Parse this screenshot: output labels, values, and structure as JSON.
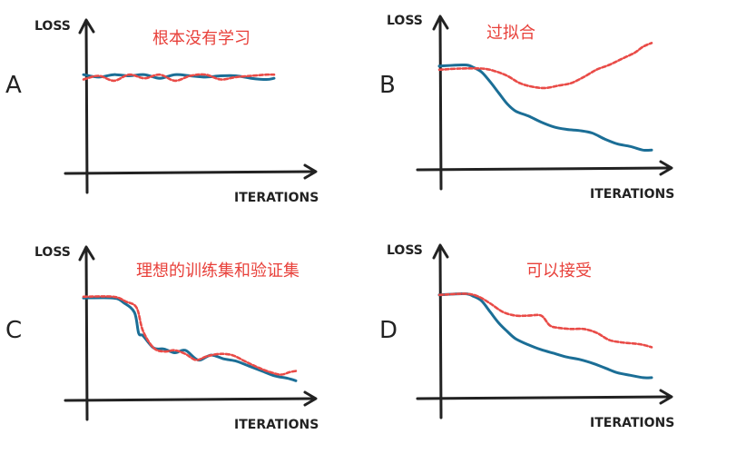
{
  "colors": {
    "training": "#1b6e96",
    "validation": "#e94b47",
    "axis": "#222222",
    "title": "#e8403a"
  },
  "chart_data": [
    {
      "type": "line",
      "panel": "A",
      "title": "根本没有学习",
      "xlabel": "ITERATIONS",
      "ylabel": "LOSS",
      "xlim": [
        0,
        10
      ],
      "ylim": [
        0,
        10
      ],
      "grid": false,
      "series": [
        {
          "style": "solid",
          "color": "#1b6e96",
          "x": [
            0,
            0.8,
            1.6,
            2.4,
            3.2,
            4.0,
            4.8,
            5.6,
            6.4,
            7.2,
            8.0,
            8.8,
            9.6,
            10
          ],
          "y": [
            7.3,
            7.1,
            7.3,
            7.2,
            7.3,
            7.0,
            7.3,
            7.2,
            7.1,
            7.2,
            7.2,
            7.0,
            6.9,
            7.0
          ]
        },
        {
          "style": "dashed",
          "color": "#e94b47",
          "x": [
            0,
            0.8,
            1.6,
            2.4,
            3.2,
            4.0,
            4.8,
            5.6,
            6.4,
            7.2,
            8.0,
            8.8,
            9.6,
            10
          ],
          "y": [
            6.9,
            7.2,
            6.8,
            7.3,
            7.0,
            7.3,
            6.8,
            7.2,
            7.3,
            6.9,
            7.1,
            7.2,
            7.3,
            7.3
          ]
        }
      ]
    },
    {
      "type": "line",
      "panel": "B",
      "title": "过拟合",
      "xlabel": "ITERATIONS",
      "ylabel": "LOSS",
      "xlim": [
        0,
        10
      ],
      "ylim": [
        0,
        10
      ],
      "grid": false,
      "series": [
        {
          "style": "solid",
          "color": "#1b6e96",
          "x": [
            0,
            1.2,
            1.6,
            2.0,
            2.4,
            2.8,
            3.2,
            3.6,
            4.2,
            4.8,
            5.4,
            6.0,
            6.6,
            7.2,
            7.8,
            8.4,
            9.0,
            9.6,
            10
          ],
          "y": [
            7.7,
            7.8,
            7.6,
            7.2,
            6.4,
            5.5,
            4.6,
            4.0,
            3.6,
            3.1,
            2.7,
            2.5,
            2.4,
            2.2,
            1.7,
            1.3,
            1.1,
            0.8,
            0.8
          ]
        },
        {
          "style": "dashed",
          "color": "#e94b47",
          "x": [
            0,
            1.0,
            2.0,
            2.6,
            3.2,
            3.8,
            4.4,
            5.0,
            5.6,
            6.2,
            6.8,
            7.4,
            8.0,
            8.6,
            9.2,
            9.6,
            10
          ],
          "y": [
            7.4,
            7.5,
            7.5,
            7.3,
            6.9,
            6.3,
            6.0,
            5.9,
            6.1,
            6.3,
            6.8,
            7.4,
            7.8,
            8.3,
            8.8,
            9.3,
            9.6
          ]
        }
      ]
    },
    {
      "type": "line",
      "panel": "C",
      "title": "理想的训练集和验证集",
      "xlabel": "ITERATIONS",
      "ylabel": "LOSS",
      "xlim": [
        0,
        10
      ],
      "ylim": [
        0,
        10
      ],
      "grid": false,
      "series": [
        {
          "style": "solid",
          "color": "#1b6e96",
          "x": [
            0,
            1.4,
            1.9,
            2.4,
            2.6,
            2.8,
            3.3,
            3.8,
            4.3,
            4.8,
            5.4,
            6.0,
            6.6,
            7.2,
            7.8,
            8.4,
            9.0,
            9.6,
            10
          ],
          "y": [
            7.6,
            7.6,
            7.2,
            6.4,
            4.7,
            4.5,
            3.5,
            3.4,
            3.1,
            3.3,
            2.5,
            2.9,
            2.6,
            2.4,
            2.0,
            1.6,
            1.2,
            1.0,
            0.8
          ]
        },
        {
          "style": "dashed",
          "color": "#e94b47",
          "x": [
            0,
            1.4,
            2.0,
            2.5,
            2.8,
            3.3,
            3.8,
            4.3,
            4.8,
            5.3,
            5.8,
            6.4,
            7.0,
            7.6,
            8.2,
            8.8,
            9.3,
            9.7,
            10
          ],
          "y": [
            7.7,
            7.7,
            7.3,
            6.8,
            4.9,
            3.5,
            3.2,
            3.3,
            3.0,
            2.5,
            2.8,
            3.0,
            2.9,
            2.4,
            1.9,
            1.5,
            1.3,
            1.5,
            1.6
          ]
        }
      ]
    },
    {
      "type": "line",
      "panel": "D",
      "title": "可以接受",
      "xlabel": "ITERATIONS",
      "ylabel": "LOSS",
      "xlim": [
        0,
        10
      ],
      "ylim": [
        0,
        10
      ],
      "grid": false,
      "series": [
        {
          "style": "solid",
          "color": "#1b6e96",
          "x": [
            0,
            1.2,
            1.6,
            2.0,
            2.4,
            2.8,
            3.2,
            3.6,
            4.2,
            4.8,
            5.4,
            6.0,
            6.6,
            7.2,
            7.8,
            8.4,
            9.0,
            9.6,
            10
          ],
          "y": [
            7.7,
            7.8,
            7.6,
            7.2,
            6.3,
            5.4,
            4.7,
            4.1,
            3.6,
            3.2,
            2.9,
            2.6,
            2.4,
            2.1,
            1.7,
            1.3,
            1.1,
            0.9,
            0.9
          ]
        },
        {
          "style": "dashed",
          "color": "#e94b47",
          "x": [
            0,
            1.2,
            1.8,
            2.4,
            3.0,
            3.6,
            4.2,
            4.8,
            5.2,
            5.6,
            6.2,
            6.8,
            7.4,
            8.0,
            8.6,
            9.2,
            9.6,
            10
          ],
          "y": [
            7.7,
            7.8,
            7.6,
            7.0,
            6.3,
            6.0,
            6.0,
            6.0,
            5.2,
            5.0,
            4.9,
            4.9,
            4.6,
            4.0,
            3.8,
            3.7,
            3.6,
            3.4
          ]
        }
      ]
    }
  ]
}
